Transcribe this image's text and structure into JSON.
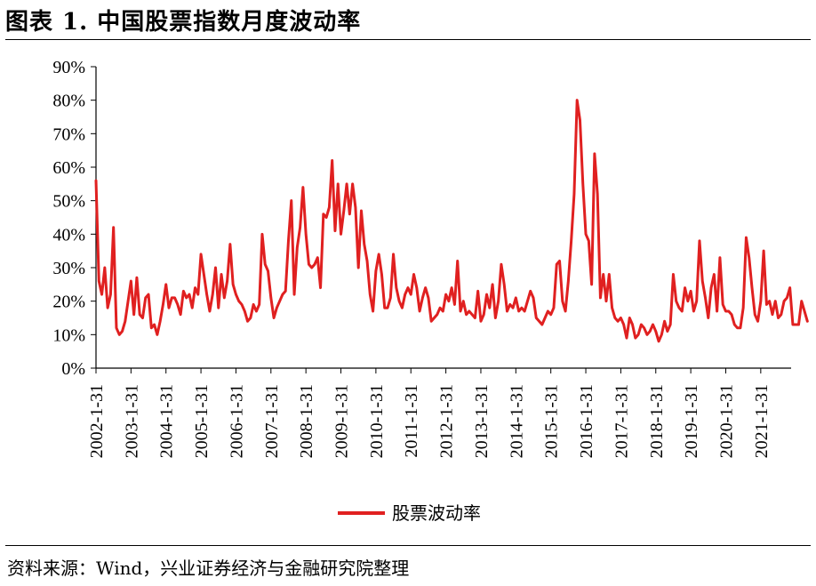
{
  "header": {
    "title": "图表 1.  中国股票指数月度波动率"
  },
  "footer": {
    "source": "资料来源：Wind，兴业证券经济与金融研究院整理"
  },
  "chart_data": {
    "type": "line",
    "title": "",
    "xlabel": "",
    "ylabel": "",
    "ylim": [
      0,
      90
    ],
    "yticks": [
      "0%",
      "10%",
      "20%",
      "30%",
      "40%",
      "50%",
      "60%",
      "70%",
      "80%",
      "90%"
    ],
    "xtick_labels": [
      "2002-1-31",
      "2003-1-31",
      "2004-1-31",
      "2005-1-31",
      "2006-1-31",
      "2007-1-31",
      "2008-1-31",
      "2009-1-31",
      "2010-1-31",
      "2011-1-31",
      "2012-1-31",
      "2013-1-31",
      "2014-1-31",
      "2015-1-31",
      "2016-1-31",
      "2017-1-31",
      "2018-1-31",
      "2019-1-31",
      "2020-1-31",
      "2021-1-31"
    ],
    "legend": {
      "position": "bottom",
      "label": "股票波动率"
    },
    "grid": false,
    "series": [
      {
        "name": "股票波动率",
        "color": "#e02020",
        "start": "2002-01",
        "values": [
          56,
          26,
          22,
          30,
          18,
          22,
          42,
          12,
          10,
          11,
          14,
          20,
          26,
          16,
          27,
          16,
          15,
          21,
          22,
          12,
          13,
          10,
          14,
          19,
          25,
          18,
          21,
          21,
          19,
          16,
          23,
          21,
          22,
          18,
          24,
          22,
          34,
          28,
          22,
          17,
          22,
          30,
          18,
          28,
          21,
          26,
          37,
          25,
          22,
          20,
          19,
          17,
          14,
          15,
          19,
          17,
          19,
          40,
          31,
          29,
          21,
          15,
          18,
          20,
          22,
          23,
          38,
          50,
          22,
          36,
          42,
          54,
          40,
          31,
          30,
          31,
          33,
          24,
          46,
          45,
          48,
          62,
          41,
          55,
          40,
          47,
          55,
          46,
          55,
          48,
          30,
          47,
          37,
          32,
          22,
          17,
          29,
          34,
          28,
          18,
          18,
          21,
          34,
          24,
          20,
          18,
          22,
          24,
          22,
          28,
          24,
          17,
          21,
          24,
          21,
          14,
          15,
          16,
          18,
          17,
          22,
          20,
          24,
          19,
          32,
          17,
          20,
          16,
          17,
          16,
          15,
          23,
          14,
          16,
          22,
          18,
          25,
          15,
          20,
          31,
          25,
          17,
          19,
          18,
          21,
          17,
          18,
          17,
          20,
          23,
          21,
          15,
          14,
          13,
          15,
          17,
          16,
          18,
          31,
          32,
          20,
          17,
          26,
          38,
          52,
          80,
          74,
          55,
          40,
          38,
          25,
          64,
          52,
          21,
          28,
          20,
          28,
          18,
          15,
          14,
          15,
          13,
          9,
          15,
          13,
          9,
          10,
          13,
          12,
          10,
          11,
          13,
          11,
          8,
          10,
          14,
          11,
          13,
          28,
          20,
          18,
          17,
          24,
          20,
          23,
          17,
          20,
          38,
          26,
          21,
          15,
          24,
          28,
          17,
          33,
          19,
          17,
          17,
          16,
          13,
          12,
          12,
          18,
          39,
          33,
          24,
          16,
          14,
          20,
          35,
          19,
          20,
          16,
          20,
          15,
          16,
          20,
          21,
          24,
          13,
          13,
          13,
          20,
          17,
          14
        ]
      }
    ]
  }
}
